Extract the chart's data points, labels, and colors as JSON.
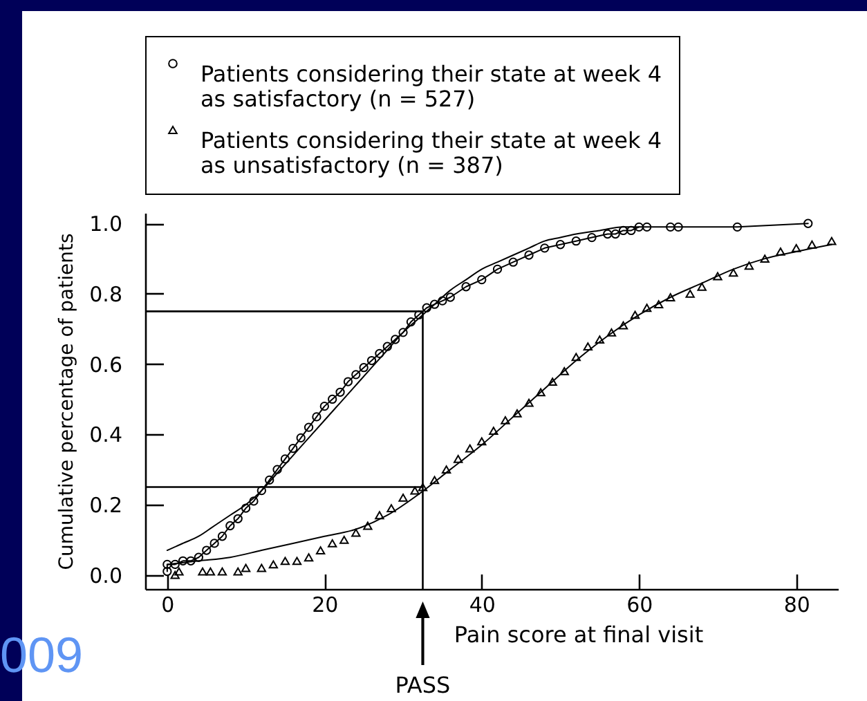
{
  "chart_data": {
    "type": "scatter",
    "xlabel": "Pain score at final visit",
    "ylabel": "Cumulative percentage of patients",
    "annotations": [
      "009",
      "PASS"
    ],
    "xlim": [
      -2.8,
      85.3
    ],
    "xticks": [
      0,
      20,
      40,
      60,
      80
    ],
    "ylim": [
      -0.04,
      1.03
    ],
    "yticks": [
      {
        "value": 0,
        "label": "0.0"
      },
      0.2,
      0.4,
      0.6,
      0.8,
      {
        "value": 1,
        "label": "1.0"
      }
    ],
    "legend": "top",
    "ref_lines": [
      {
        "axis": "x",
        "value": 32.5,
        "color": "#000000"
      },
      {
        "axis": "y",
        "value": 0.25,
        "color": "#000000"
      },
      {
        "axis": "y",
        "value": 0.75,
        "color": "#000000"
      }
    ],
    "series": [
      {
        "name": "Patients considering their state at week 4 as satisfactory (n = 527)",
        "type": "line",
        "marker": "circle",
        "color": "#000000",
        "x": [
          0,
          0,
          1,
          2,
          3,
          4,
          5,
          6,
          7,
          8,
          9,
          10,
          11,
          12,
          13,
          14,
          15,
          16,
          17,
          18,
          19,
          20,
          21,
          22,
          23,
          24,
          25,
          26,
          27,
          28,
          29,
          30,
          31,
          32,
          33,
          34,
          35,
          36,
          38,
          40,
          42,
          44,
          46,
          48,
          50,
          52,
          54,
          56,
          57,
          58,
          59,
          60,
          61,
          64,
          65,
          72.5,
          81.5
        ],
        "values": [
          0.01,
          0.03,
          0.03,
          0.04,
          0.04,
          0.05,
          0.07,
          0.09,
          0.11,
          0.14,
          0.16,
          0.19,
          0.21,
          0.24,
          0.27,
          0.3,
          0.33,
          0.36,
          0.39,
          0.42,
          0.45,
          0.48,
          0.5,
          0.52,
          0.55,
          0.57,
          0.59,
          0.61,
          0.63,
          0.65,
          0.67,
          0.69,
          0.72,
          0.74,
          0.76,
          0.77,
          0.78,
          0.79,
          0.82,
          0.84,
          0.87,
          0.89,
          0.91,
          0.93,
          0.94,
          0.95,
          0.96,
          0.97,
          0.97,
          0.98,
          0.98,
          0.99,
          0.99,
          0.99,
          0.99,
          0.99,
          1.0
        ]
      },
      {
        "name": "Patients considering their state at week 4 as unsatisfactory (n = 387)",
        "marker": "triangle",
        "color": "#000000",
        "x": [
          1,
          1.5,
          4.5,
          5.5,
          7,
          9,
          10,
          12,
          13.5,
          15,
          16.5,
          18,
          19.5,
          21,
          22.5,
          24,
          25.5,
          27,
          28.5,
          30,
          31.5,
          32.5,
          34,
          35.5,
          37,
          38.5,
          40,
          41.5,
          43,
          44.5,
          46,
          47.5,
          49,
          50.5,
          52,
          53.5,
          55,
          56.5,
          58,
          59.5,
          61,
          62.5,
          64,
          66.5,
          68,
          70,
          72,
          74,
          76,
          78,
          80,
          82,
          84.5
        ],
        "values": [
          0,
          0.01,
          0.01,
          0.01,
          0.01,
          0.01,
          0.02,
          0.02,
          0.03,
          0.04,
          0.04,
          0.05,
          0.07,
          0.09,
          0.1,
          0.12,
          0.14,
          0.17,
          0.19,
          0.22,
          0.24,
          0.25,
          0.27,
          0.3,
          0.33,
          0.36,
          0.38,
          0.41,
          0.44,
          0.46,
          0.49,
          0.52,
          0.55,
          0.58,
          0.62,
          0.65,
          0.67,
          0.69,
          0.71,
          0.74,
          0.76,
          0.77,
          0.79,
          0.8,
          0.82,
          0.85,
          0.86,
          0.88,
          0.9,
          0.92,
          0.93,
          0.94,
          0.95
        ]
      },
      {
        "type": "line",
        "marker": "none",
        "color": "#000000",
        "x": [
          0,
          2,
          4,
          6,
          8,
          10,
          12,
          14,
          16,
          18,
          20,
          22,
          24,
          26,
          28,
          30,
          32,
          34,
          36,
          38,
          40,
          42,
          44,
          46,
          48,
          50,
          52,
          55,
          58,
          60
        ],
        "values": [
          0.07,
          0.09,
          0.11,
          0.14,
          0.17,
          0.2,
          0.24,
          0.29,
          0.34,
          0.39,
          0.44,
          0.49,
          0.54,
          0.59,
          0.64,
          0.69,
          0.73,
          0.77,
          0.81,
          0.84,
          0.87,
          0.89,
          0.91,
          0.93,
          0.95,
          0.96,
          0.97,
          0.98,
          0.99,
          0.99
        ]
      },
      {
        "type": "line",
        "marker": "none",
        "color": "#000000",
        "x": [
          0,
          4,
          8,
          12,
          16,
          20,
          24,
          28,
          32,
          36,
          40,
          44,
          48,
          52,
          56,
          60,
          64,
          68,
          72,
          76,
          80,
          84.5
        ],
        "values": [
          0.03,
          0.04,
          0.05,
          0.07,
          0.09,
          0.11,
          0.13,
          0.17,
          0.23,
          0.3,
          0.37,
          0.45,
          0.53,
          0.61,
          0.68,
          0.74,
          0.79,
          0.83,
          0.87,
          0.9,
          0.92,
          0.94
        ]
      }
    ]
  }
}
